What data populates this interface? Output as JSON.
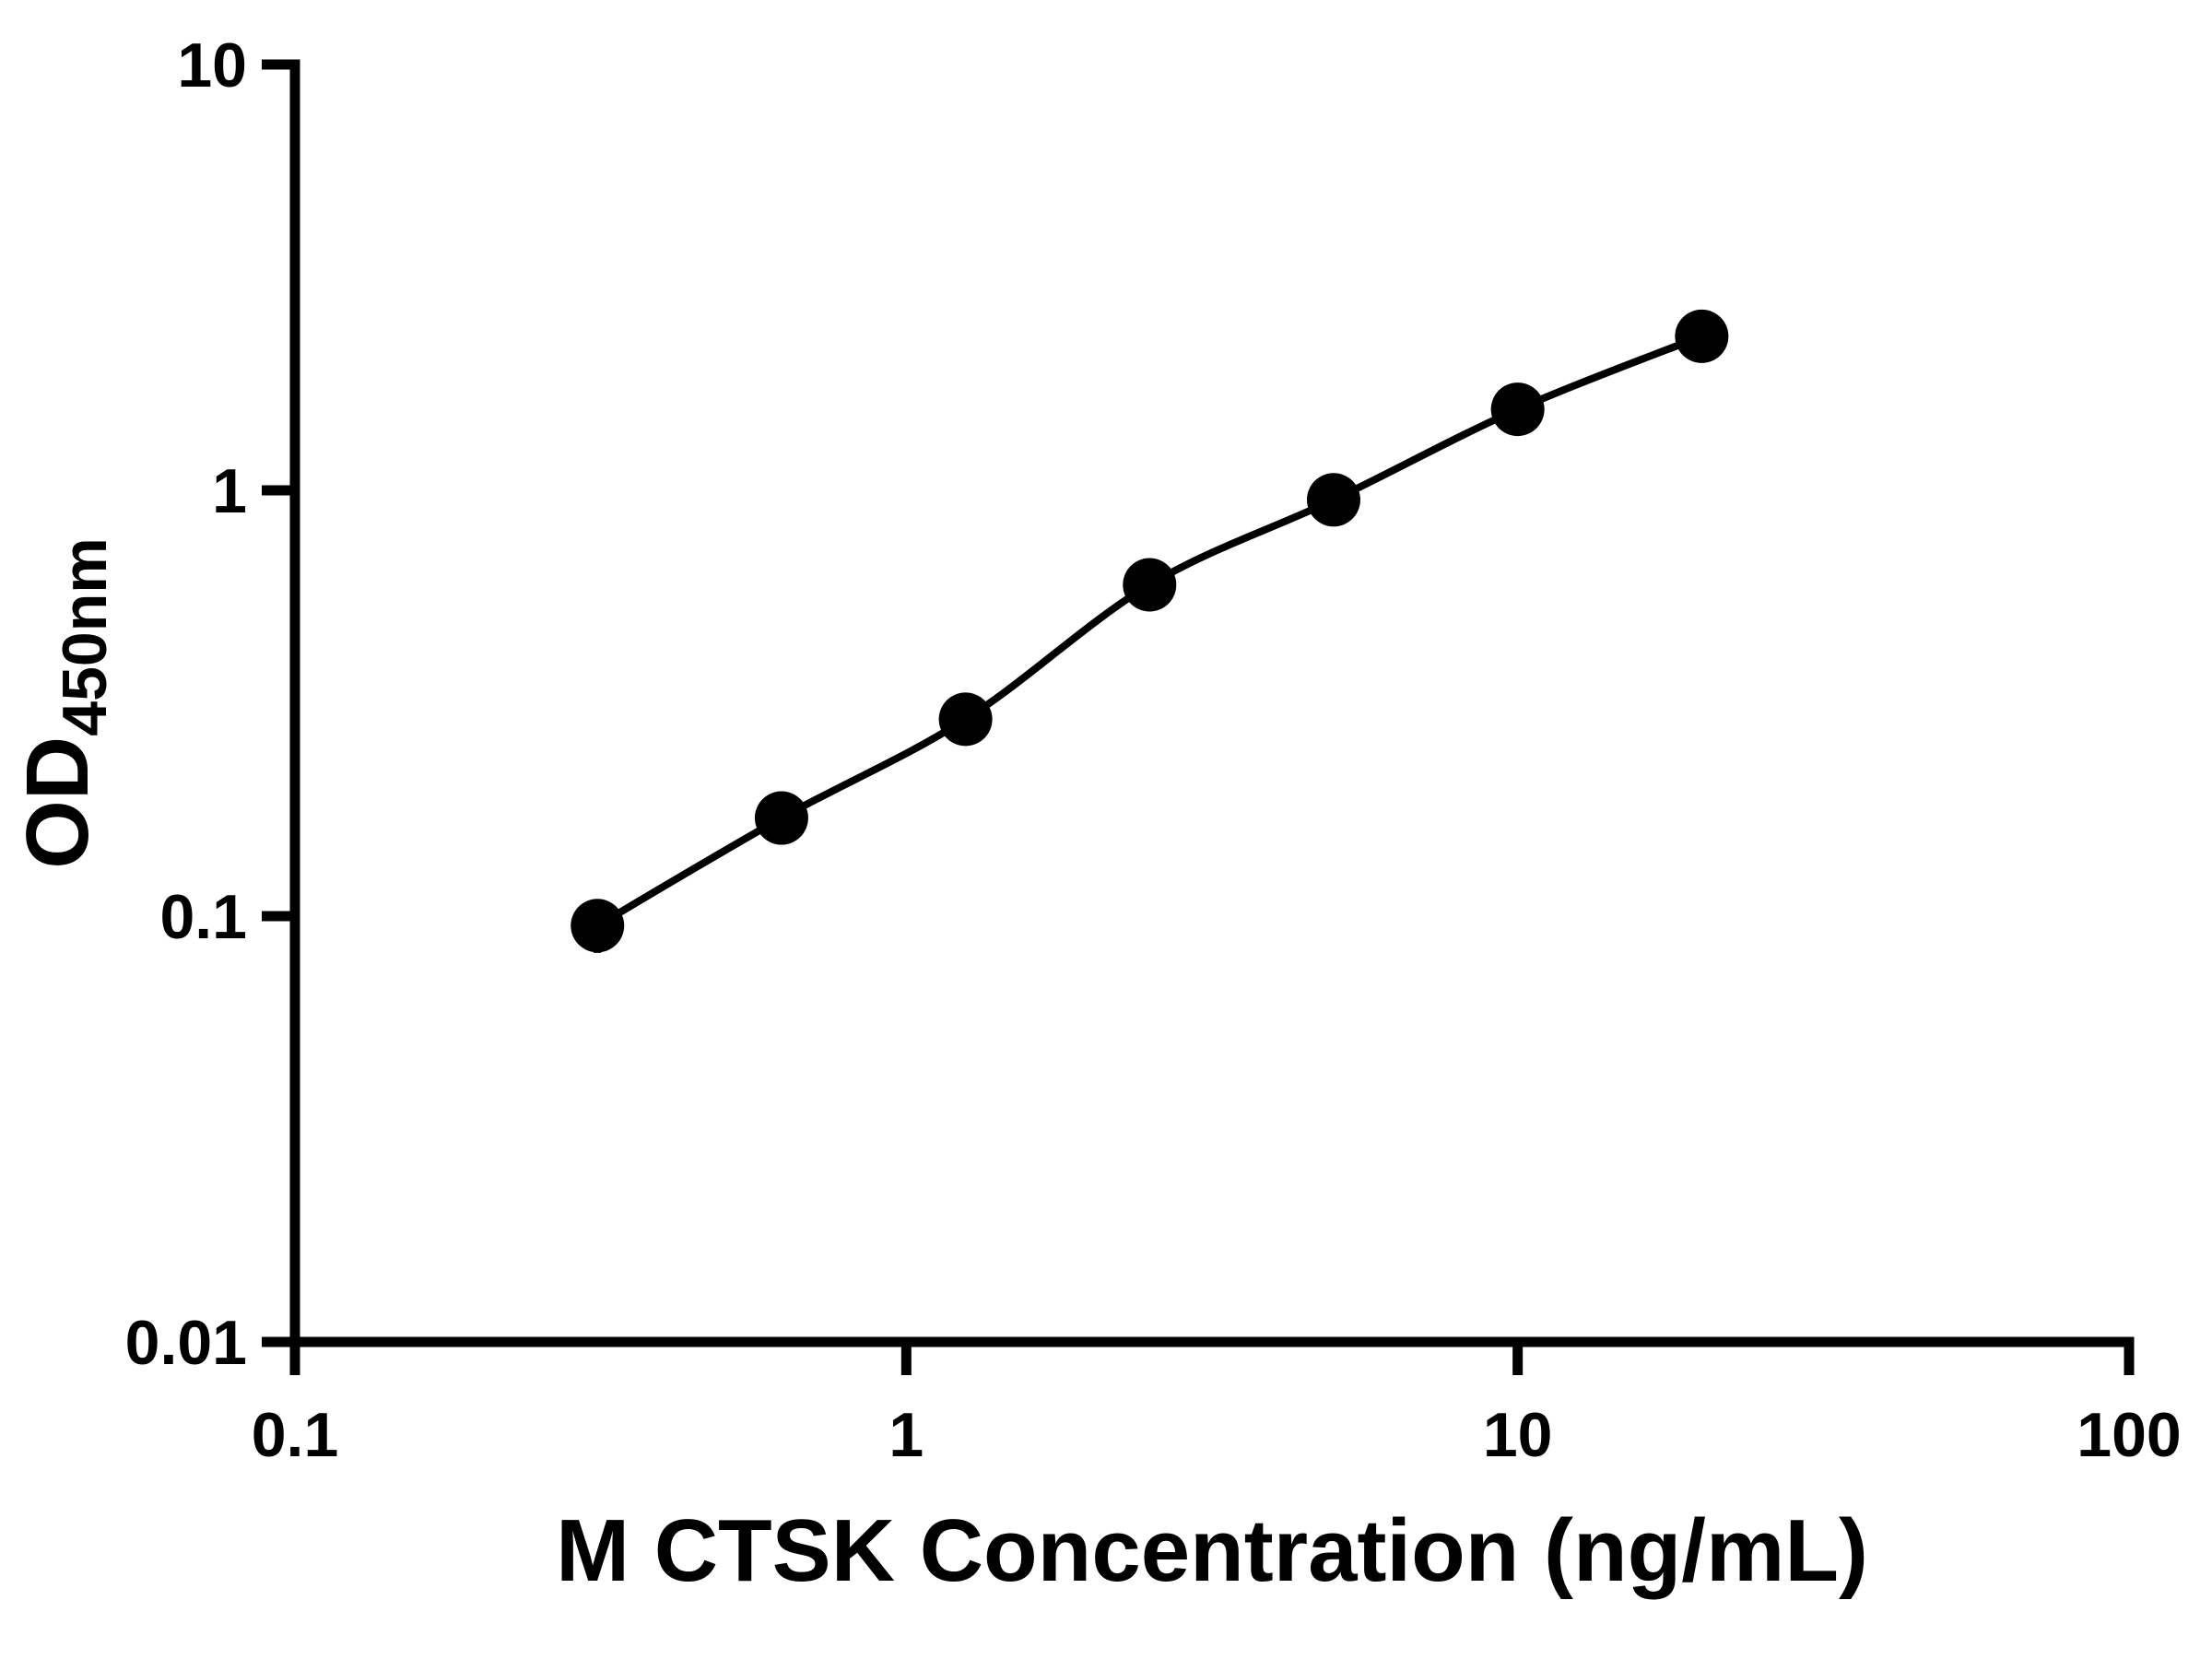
{
  "page": {
    "background": "#ffffff"
  },
  "chart_data": {
    "type": "scatter",
    "title": "",
    "xlabel": "M CTSK Concentration (ng/mL)",
    "ylabel": "OD450nm",
    "ylabel_main": "OD",
    "ylabel_sub": "450nm",
    "x_scale": "log",
    "y_scale": "log",
    "xlim": [
      0.1,
      100
    ],
    "ylim": [
      0.01,
      10
    ],
    "grid": false,
    "legend": "none",
    "x_ticks": [
      {
        "value": 0.1,
        "label": "0.1"
      },
      {
        "value": 1,
        "label": "1"
      },
      {
        "value": 10,
        "label": "10"
      },
      {
        "value": 100,
        "label": "100"
      }
    ],
    "y_ticks": [
      {
        "value": 0.01,
        "label": "0.01"
      },
      {
        "value": 0.1,
        "label": "0.1"
      },
      {
        "value": 1,
        "label": "1"
      },
      {
        "value": 10,
        "label": "10"
      }
    ],
    "series": [
      {
        "x": [
          0.3125,
          0.625,
          1.25,
          2.5,
          5,
          10,
          20
        ],
        "y": [
          0.095,
          0.17,
          0.29,
          0.6,
          0.95,
          1.55,
          2.3
        ],
        "y_err_lower": [
          0.013,
          0,
          0,
          0,
          0,
          0,
          0
        ],
        "marker": "circle",
        "marker_color": "#000000",
        "line_color": "#000000"
      }
    ],
    "axis_color": "#000000"
  }
}
